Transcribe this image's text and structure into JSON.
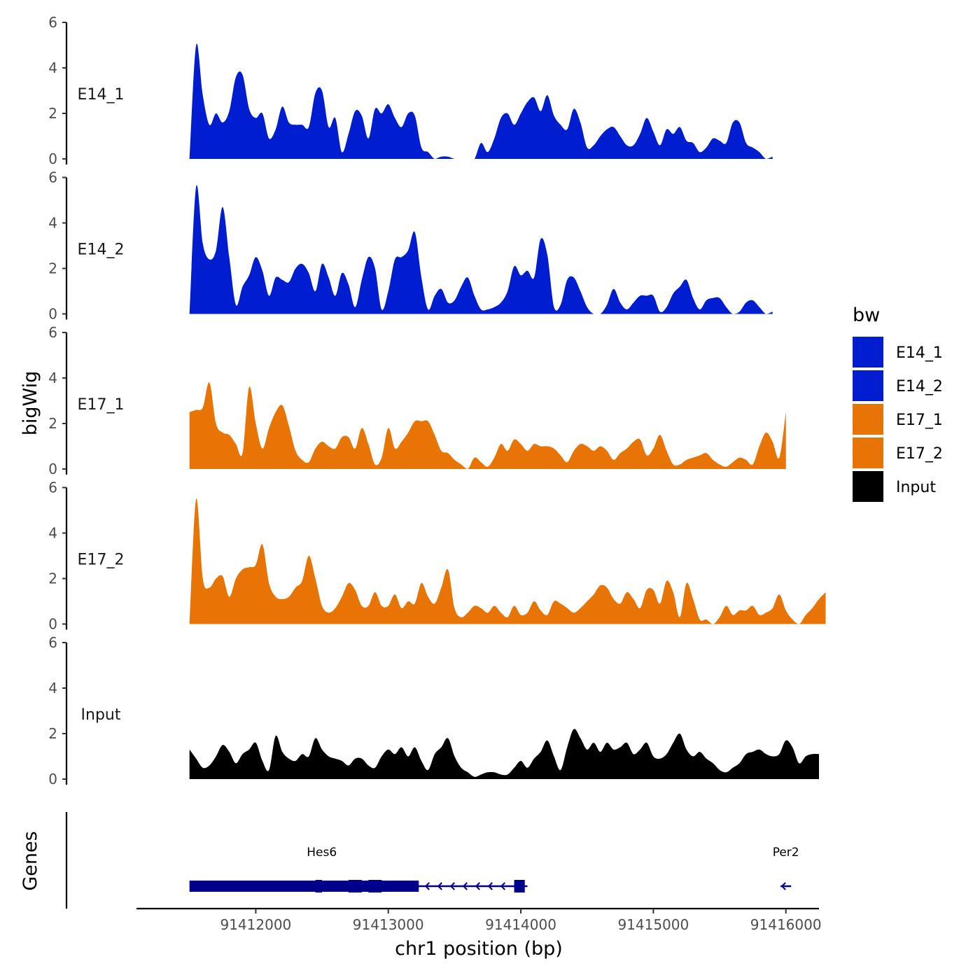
{
  "chart_data": {
    "type": "area",
    "xlabel": "chr1 position (bp)",
    "ylabel": "bigWig",
    "genes_label": "Genes",
    "xlim": [
      91411100,
      91416250
    ],
    "xticks": [
      {
        "value": 91412000,
        "label": "91412000"
      },
      {
        "value": 91413000,
        "label": "91413000"
      },
      {
        "value": 91414000,
        "label": "91414000"
      },
      {
        "value": 91415000,
        "label": "91415000"
      },
      {
        "value": 91416000,
        "label": "91416000"
      }
    ],
    "ylim": [
      0,
      6
    ],
    "yticks": [
      {
        "value": 0,
        "label": "0"
      },
      {
        "value": 2,
        "label": "2"
      },
      {
        "value": 4,
        "label": "4"
      },
      {
        "value": 6,
        "label": "6"
      }
    ],
    "legend": {
      "title": "bw",
      "position": "right",
      "entries": [
        {
          "label": "E14_1",
          "color": "#001ecf"
        },
        {
          "label": "E14_2",
          "color": "#001ecf"
        },
        {
          "label": "E17_1",
          "color": "#e87405"
        },
        {
          "label": "E17_2",
          "color": "#e87405"
        },
        {
          "label": "Input",
          "color": "#000000"
        }
      ]
    },
    "series": [
      {
        "name": "E14_1",
        "color": "#001ecf",
        "x0": 91411500,
        "step": 50,
        "values": [
          0,
          5.0,
          2.8,
          1.5,
          2.0,
          1.6,
          2.1,
          3.6,
          3.7,
          2.2,
          1.8,
          2.0,
          0.9,
          1.3,
          2.3,
          1.6,
          1.5,
          1.5,
          1.4,
          2.9,
          3.0,
          1.4,
          1.8,
          0.3,
          1.1,
          2.1,
          1.9,
          0.9,
          2.2,
          2.0,
          2.4,
          1.8,
          1.4,
          2.0,
          1.9,
          0.5,
          0.3,
          0.0,
          0.1,
          0.1,
          0.0,
          0.0,
          0.0,
          0.0,
          0.7,
          0.3,
          0.9,
          1.8,
          2.0,
          1.5,
          2.0,
          2.5,
          2.7,
          2.1,
          2.8,
          1.9,
          1.5,
          1.3,
          2.2,
          1.6,
          0.5,
          0.6,
          1.0,
          1.3,
          1.4,
          1.0,
          0.6,
          0.6,
          1.1,
          1.8,
          1.2,
          0.6,
          1.3,
          1.1,
          1.4,
          0.8,
          0.7,
          0.3,
          0.5,
          0.9,
          0.8,
          0.7,
          1.6,
          1.6,
          0.7,
          0.5,
          0.3,
          0.0,
          0.1
        ]
      },
      {
        "name": "E14_2",
        "color": "#001ecf",
        "x0": 91411500,
        "step": 50,
        "values": [
          0,
          5.6,
          3.1,
          2.4,
          2.8,
          4.7,
          2.5,
          0.4,
          1.2,
          1.7,
          2.5,
          1.9,
          0.8,
          1.6,
          1.5,
          1.4,
          2.0,
          2.2,
          1.8,
          1.0,
          2.2,
          1.6,
          0.8,
          1.8,
          1.3,
          0.3,
          1.5,
          2.5,
          2.0,
          0.2,
          1.0,
          2.4,
          2.5,
          2.8,
          3.6,
          1.6,
          0.2,
          0.8,
          1.1,
          0.5,
          0.6,
          1.2,
          1.6,
          0.8,
          0.2,
          0.2,
          0.3,
          0.5,
          1.0,
          2.1,
          1.7,
          1.9,
          1.6,
          3.3,
          2.6,
          0.3,
          0.4,
          1.5,
          1.6,
          1.0,
          0.3,
          0.0,
          0.0,
          0.4,
          1.1,
          0.5,
          0.2,
          0.5,
          0.8,
          0.8,
          0.8,
          0.1,
          0.3,
          0.9,
          1.2,
          1.5,
          0.7,
          0.2,
          0.6,
          0.7,
          0.7,
          0.3,
          0.0,
          0.1,
          0.5,
          0.6,
          0.3,
          0.0,
          0.1
        ]
      },
      {
        "name": "E17_1",
        "color": "#e87405",
        "x0": 91411500,
        "step": 50,
        "values": [
          2.5,
          2.6,
          2.7,
          3.8,
          2.0,
          1.6,
          1.5,
          1.1,
          0.7,
          3.6,
          2.0,
          0.9,
          1.8,
          2.5,
          2.8,
          1.9,
          0.8,
          0.4,
          0.3,
          0.9,
          1.2,
          1.0,
          0.9,
          1.4,
          1.4,
          0.9,
          1.8,
          1.1,
          0.2,
          0.5,
          1.8,
          0.9,
          1.2,
          1.6,
          2.1,
          2.1,
          2.1,
          1.5,
          0.8,
          0.7,
          0.4,
          0.2,
          0.0,
          0.5,
          0.3,
          0.1,
          0.5,
          1.1,
          0.8,
          1.3,
          1.1,
          0.8,
          1.1,
          1.0,
          1.0,
          0.9,
          0.6,
          0.3,
          0.8,
          1.1,
          1.0,
          0.8,
          1.0,
          0.8,
          0.4,
          0.7,
          0.9,
          1.2,
          1.3,
          0.6,
          0.9,
          1.5,
          0.8,
          0.2,
          0.2,
          0.4,
          0.5,
          0.6,
          0.7,
          0.4,
          0.2,
          0.1,
          0.3,
          0.5,
          0.4,
          0.2,
          1.0,
          1.6,
          1.2,
          0.5,
          2.5
        ]
      },
      {
        "name": "E17_2",
        "color": "#e87405",
        "x0": 91411500,
        "step": 50,
        "values": [
          0,
          5.5,
          2.0,
          1.6,
          2.0,
          2.1,
          1.2,
          2.0,
          2.4,
          2.5,
          2.6,
          3.5,
          1.8,
          1.2,
          1.1,
          1.2,
          1.6,
          1.9,
          3.0,
          2.0,
          0.8,
          0.5,
          0.7,
          1.2,
          1.8,
          1.5,
          0.8,
          0.8,
          1.4,
          0.8,
          0.8,
          1.3,
          0.7,
          1.0,
          0.9,
          1.8,
          1.2,
          0.9,
          1.6,
          2.4,
          0.7,
          0.3,
          0.5,
          0.8,
          0.7,
          0.5,
          0.8,
          0.5,
          0.3,
          0.8,
          0.4,
          0.5,
          1.0,
          0.6,
          0.4,
          1.0,
          0.9,
          0.7,
          0.5,
          0.7,
          1.0,
          1.3,
          1.7,
          1.6,
          1.1,
          0.9,
          1.4,
          1.1,
          0.7,
          1.5,
          1.5,
          0.9,
          1.9,
          1.4,
          0.3,
          1.8,
          1.1,
          0.2,
          0.2,
          0.0,
          0.3,
          0.8,
          0.4,
          0.6,
          0.6,
          0.8,
          0.4,
          0.5,
          0.7,
          1.3,
          0.6,
          0.2,
          0.0,
          0.4,
          0.7,
          1.1,
          1.4
        ]
      },
      {
        "name": "Input",
        "color": "#000000",
        "x0": 91411500,
        "step": 50,
        "values": [
          1.3,
          0.9,
          0.5,
          0.6,
          1.0,
          1.5,
          1.2,
          0.7,
          1.1,
          1.3,
          1.6,
          0.8,
          0.4,
          1.9,
          1.2,
          0.9,
          0.8,
          1.1,
          1.0,
          1.8,
          1.3,
          1.0,
          0.9,
          0.8,
          0.6,
          0.9,
          0.9,
          0.6,
          0.5,
          1.0,
          1.3,
          1.1,
          1.4,
          1.0,
          1.4,
          0.8,
          0.4,
          1.1,
          1.4,
          1.8,
          1.0,
          0.5,
          0.3,
          0.1,
          0.2,
          0.3,
          0.3,
          0.2,
          0.2,
          0.5,
          0.8,
          0.5,
          0.9,
          1.2,
          1.7,
          1.0,
          0.4,
          1.4,
          2.2,
          1.8,
          1.3,
          1.6,
          1.2,
          1.6,
          1.3,
          1.4,
          1.6,
          1.1,
          1.3,
          1.6,
          1.0,
          0.9,
          1.1,
          1.6,
          2.0,
          1.3,
          1.0,
          1.2,
          0.9,
          0.7,
          0.4,
          0.3,
          0.5,
          0.7,
          1.1,
          1.2,
          1.3,
          1.1,
          1.0,
          1.1,
          1.7,
          1.4,
          0.7,
          1.0,
          1.1,
          1.1
        ]
      }
    ],
    "genes": [
      {
        "name": "Hes6",
        "strand": "-",
        "start": 91411500,
        "end": 91414050,
        "thick_blocks": [
          [
            91411500,
            91413230
          ]
        ],
        "exons": [
          [
            91412450,
            91412500
          ],
          [
            91412700,
            91412800
          ],
          [
            91412850,
            91412950
          ],
          [
            91413950,
            91414030
          ]
        ]
      },
      {
        "name": "Per2",
        "strand": "-",
        "start": 91415960,
        "end": 91416040,
        "thick_blocks": [],
        "exons": []
      }
    ]
  }
}
